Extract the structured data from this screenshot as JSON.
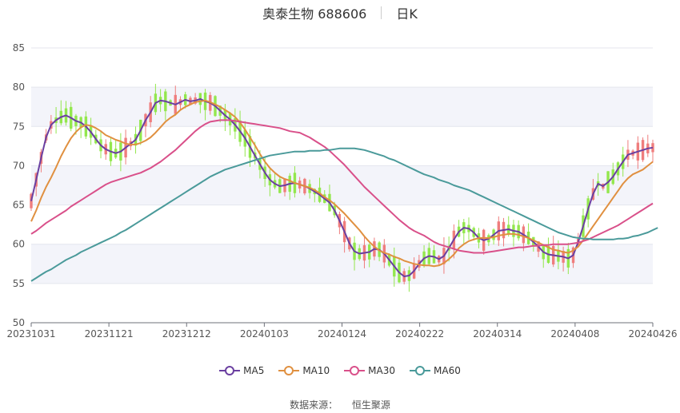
{
  "header": {
    "title": "奥泰生物 688606",
    "period": "日K"
  },
  "source_label": "数据来源：",
  "source_name": "恒生聚源",
  "colors": {
    "up": "#ef7d7d",
    "down": "#93e74d",
    "ma5": "#6a3fa0",
    "ma10": "#e09040",
    "ma30": "#d9508a",
    "ma60": "#4a9a9a",
    "band": "#f3f4fa",
    "grid": "#e4e6ee"
  },
  "chart_data": {
    "type": "candlestick",
    "title": "奥泰生物 688606",
    "ylim": [
      50,
      85
    ],
    "yticks": [
      "85",
      "80",
      "75",
      "70",
      "65",
      "60",
      "55",
      "50"
    ],
    "xticks": [
      "20231031",
      "20231121",
      "20231212",
      "20240103",
      "20240124",
      "20240222",
      "20240314",
      "20240408",
      "20240426"
    ],
    "legend_position": "bottom",
    "series": [
      {
        "name": "MA5",
        "color": "#6a3fa0",
        "values": [
          65.5,
          68.2,
          71,
          73.6,
          75.2,
          75.8,
          76.2,
          76.4,
          76.1,
          75.7,
          75.5,
          75,
          74.3,
          73.4,
          72.6,
          72.1,
          71.8,
          71.6,
          71.8,
          72.3,
          72.8,
          73.3,
          74.5,
          75.8,
          76.8,
          78,
          78.3,
          78.2,
          78,
          77.8,
          78.1,
          78.4,
          78.2,
          78.3,
          78.5,
          78.2,
          78,
          77.6,
          77,
          76.4,
          75.9,
          75.2,
          74.4,
          73.5,
          72.4,
          71.3,
          70.2,
          69.1,
          68.2,
          67.7,
          67.4,
          67.5,
          67.7,
          67.8,
          67.6,
          67.4,
          67.1,
          66.7,
          66.3,
          65.8,
          65.3,
          64.3,
          63,
          61.6,
          60.1,
          59.1,
          58.8,
          58.9,
          59,
          59.4,
          59.3,
          58.8,
          58,
          57.2,
          56.4,
          55.9,
          56,
          56.6,
          57.5,
          58.2,
          58.5,
          58.4,
          58.1,
          58.5,
          59.5,
          60.6,
          61.6,
          62.1,
          62,
          61.5,
          60.8,
          60.5,
          60.7,
          61.2,
          61.7,
          61.8,
          61.9,
          61.7,
          61.6,
          61.2,
          60.8,
          60.3,
          59.7,
          59,
          58.7,
          58.6,
          58.5,
          58.4,
          58.2,
          58.6,
          60.3,
          62.3,
          64.5,
          66.4,
          67.7,
          67.4,
          67.9,
          68.6,
          69.6,
          70.5,
          71.4,
          71.6,
          71.8,
          72,
          72.2,
          72.3
        ]
      },
      {
        "name": "MA10",
        "color": "#e09040",
        "values": [
          62.9,
          64.3,
          65.9,
          67.3,
          68.5,
          69.8,
          71.2,
          72.4,
          73.5,
          74.3,
          74.9,
          75.2,
          75.1,
          74.8,
          74.4,
          73.9,
          73.6,
          73.3,
          73.1,
          72.8,
          72.7,
          72.7,
          72.9,
          73.2,
          73.6,
          74.2,
          74.9,
          75.6,
          76.1,
          76.5,
          77.1,
          77.5,
          77.8,
          78.1,
          78.2,
          78.3,
          78.1,
          77.8,
          77.5,
          77.1,
          76.7,
          76.2,
          75.5,
          74.6,
          73.6,
          72.6,
          71.5,
          70.5,
          69.7,
          69.1,
          68.6,
          68.3,
          68.1,
          67.8,
          67.6,
          67.4,
          67.2,
          66.9,
          66.5,
          66,
          65.6,
          65.1,
          64.5,
          63.9,
          63.2,
          62.5,
          61.8,
          61,
          60.3,
          59.7,
          59.2,
          58.9,
          58.7,
          58.4,
          58.2,
          57.9,
          57.7,
          57.5,
          57.4,
          57.3,
          57.3,
          57.2,
          57.3,
          57.6,
          58.1,
          58.7,
          59.5,
          60,
          60.4,
          60.6,
          60.8,
          60.8,
          60.8,
          60.9,
          61.1,
          61.2,
          61.3,
          61.3,
          61.2,
          61,
          60.8,
          60.5,
          60.2,
          59.9,
          59.6,
          59.3,
          59.2,
          59,
          58.9,
          59.2,
          59.7,
          60.5,
          61.4,
          62.3,
          63.2,
          64.1,
          65,
          65.9,
          66.8,
          67.7,
          68.4,
          68.9,
          69.2,
          69.5,
          70,
          70.5
        ]
      },
      {
        "name": "MA30",
        "color": "#d9508a",
        "values": [
          61.3,
          61.7,
          62.2,
          62.7,
          63.1,
          63.5,
          63.9,
          64.3,
          64.8,
          65.2,
          65.6,
          66,
          66.4,
          66.8,
          67.2,
          67.6,
          67.9,
          68.1,
          68.3,
          68.5,
          68.7,
          68.9,
          69.1,
          69.4,
          69.7,
          70.1,
          70.5,
          71,
          71.5,
          72,
          72.6,
          73.2,
          73.8,
          74.4,
          74.9,
          75.3,
          75.6,
          75.7,
          75.8,
          75.8,
          75.8,
          75.7,
          75.6,
          75.5,
          75.4,
          75.3,
          75.2,
          75.1,
          75,
          74.9,
          74.8,
          74.6,
          74.4,
          74.3,
          74.2,
          73.9,
          73.6,
          73.2,
          72.8,
          72.4,
          71.9,
          71.3,
          70.7,
          70.1,
          69.4,
          68.7,
          68,
          67.3,
          66.7,
          66.1,
          65.5,
          64.9,
          64.3,
          63.7,
          63.1,
          62.6,
          62.1,
          61.7,
          61.4,
          61.1,
          60.7,
          60.3,
          60,
          59.8,
          59.6,
          59.4,
          59.2,
          59.1,
          59,
          58.9,
          58.9,
          58.9,
          59,
          59.1,
          59.2,
          59.3,
          59.4,
          59.5,
          59.6,
          59.6,
          59.7,
          59.8,
          59.8,
          59.9,
          59.9,
          60,
          60,
          60,
          60,
          60.1,
          60.2,
          60.4,
          60.6,
          60.9,
          61.2,
          61.5,
          61.8,
          62.1,
          62.4,
          62.8,
          63.2,
          63.6,
          64,
          64.4,
          64.8,
          65.2
        ]
      },
      {
        "name": "MA60",
        "color": "#4a9a9a",
        "values": [
          55.3,
          55.7,
          56.1,
          56.5,
          56.8,
          57.2,
          57.6,
          58,
          58.3,
          58.6,
          59,
          59.3,
          59.6,
          59.9,
          60.2,
          60.5,
          60.8,
          61.1,
          61.5,
          61.8,
          62.2,
          62.6,
          63,
          63.4,
          63.8,
          64.2,
          64.6,
          65,
          65.4,
          65.8,
          66.2,
          66.6,
          67,
          67.4,
          67.8,
          68.2,
          68.6,
          68.9,
          69.2,
          69.5,
          69.7,
          69.9,
          70.1,
          70.3,
          70.5,
          70.7,
          70.9,
          71.1,
          71.3,
          71.4,
          71.5,
          71.6,
          71.7,
          71.8,
          71.8,
          71.8,
          71.9,
          71.9,
          71.9,
          72,
          72,
          72.1,
          72.2,
          72.2,
          72.2,
          72.2,
          72.1,
          72,
          71.8,
          71.6,
          71.4,
          71.2,
          70.9,
          70.7,
          70.4,
          70.1,
          69.8,
          69.5,
          69.2,
          68.9,
          68.7,
          68.5,
          68.2,
          68,
          67.8,
          67.5,
          67.3,
          67.1,
          66.9,
          66.6,
          66.3,
          66,
          65.7,
          65.4,
          65.1,
          64.8,
          64.5,
          64.2,
          63.9,
          63.6,
          63.3,
          63,
          62.7,
          62.4,
          62.1,
          61.8,
          61.5,
          61.3,
          61.1,
          60.9,
          60.8,
          60.7,
          60.7,
          60.6,
          60.6,
          60.6,
          60.6,
          60.6,
          60.7,
          60.7,
          60.8,
          61,
          61.1,
          61.3,
          61.5,
          61.8,
          62.1
        ]
      }
    ]
  }
}
